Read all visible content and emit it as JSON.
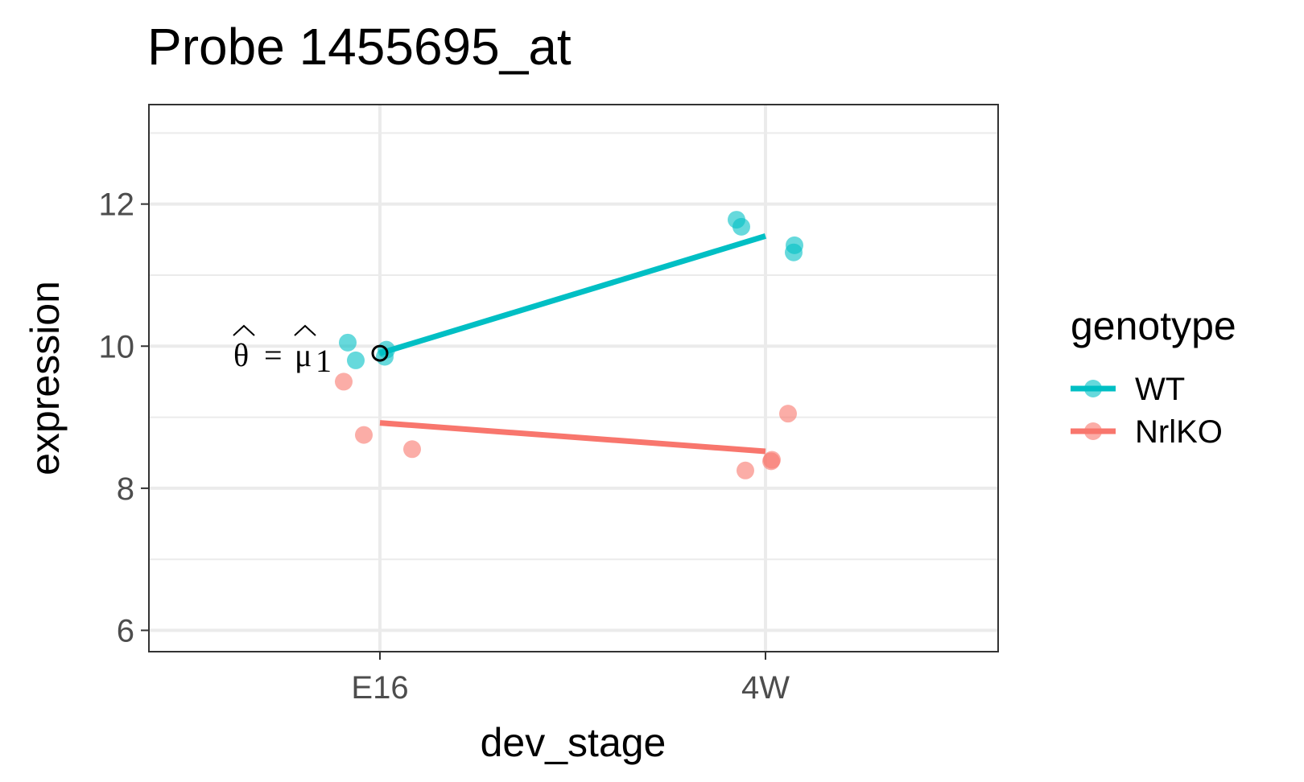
{
  "chart_data": {
    "type": "scatter",
    "title": "Probe 1455695_at",
    "xlabel": "dev_stage",
    "ylabel": "expression",
    "categories": [
      "E16",
      "4W"
    ],
    "y_ticks": [
      6,
      8,
      10,
      12
    ],
    "ylim": [
      5.7,
      13.4
    ],
    "grid": true,
    "legend": {
      "title": "genotype",
      "placement": "right",
      "entries": [
        "WT",
        "NrlKO"
      ]
    },
    "series": [
      {
        "name": "WT",
        "color": "#00BFC4",
        "points": [
          {
            "x": "E16",
            "y": 10.05
          },
          {
            "x": "E16",
            "y": 9.8
          },
          {
            "x": "E16",
            "y": 9.95
          },
          {
            "x": "E16",
            "y": 9.85
          },
          {
            "x": "4W",
            "y": 11.78
          },
          {
            "x": "4W",
            "y": 11.68
          },
          {
            "x": "4W",
            "y": 11.42
          },
          {
            "x": "4W",
            "y": 11.32
          }
        ],
        "fit_line": [
          {
            "x": "E16",
            "y": 9.9
          },
          {
            "x": "4W",
            "y": 11.55
          }
        ]
      },
      {
        "name": "NrlKO",
        "color": "#F8766D",
        "points": [
          {
            "x": "E16",
            "y": 9.5
          },
          {
            "x": "E16",
            "y": 8.75
          },
          {
            "x": "E16",
            "y": 8.55
          },
          {
            "x": "4W",
            "y": 9.05
          },
          {
            "x": "4W",
            "y": 8.25
          },
          {
            "x": "4W",
            "y": 8.4
          },
          {
            "x": "4W",
            "y": 8.38
          }
        ],
        "fit_line": [
          {
            "x": "E16",
            "y": 8.92
          },
          {
            "x": "4W",
            "y": 8.52
          }
        ]
      }
    ],
    "annotation": {
      "text_theta": "θ",
      "text_eq": "=",
      "text_mu": "μ",
      "text_sub": "1",
      "x": "E16",
      "y": 9.9
    }
  }
}
